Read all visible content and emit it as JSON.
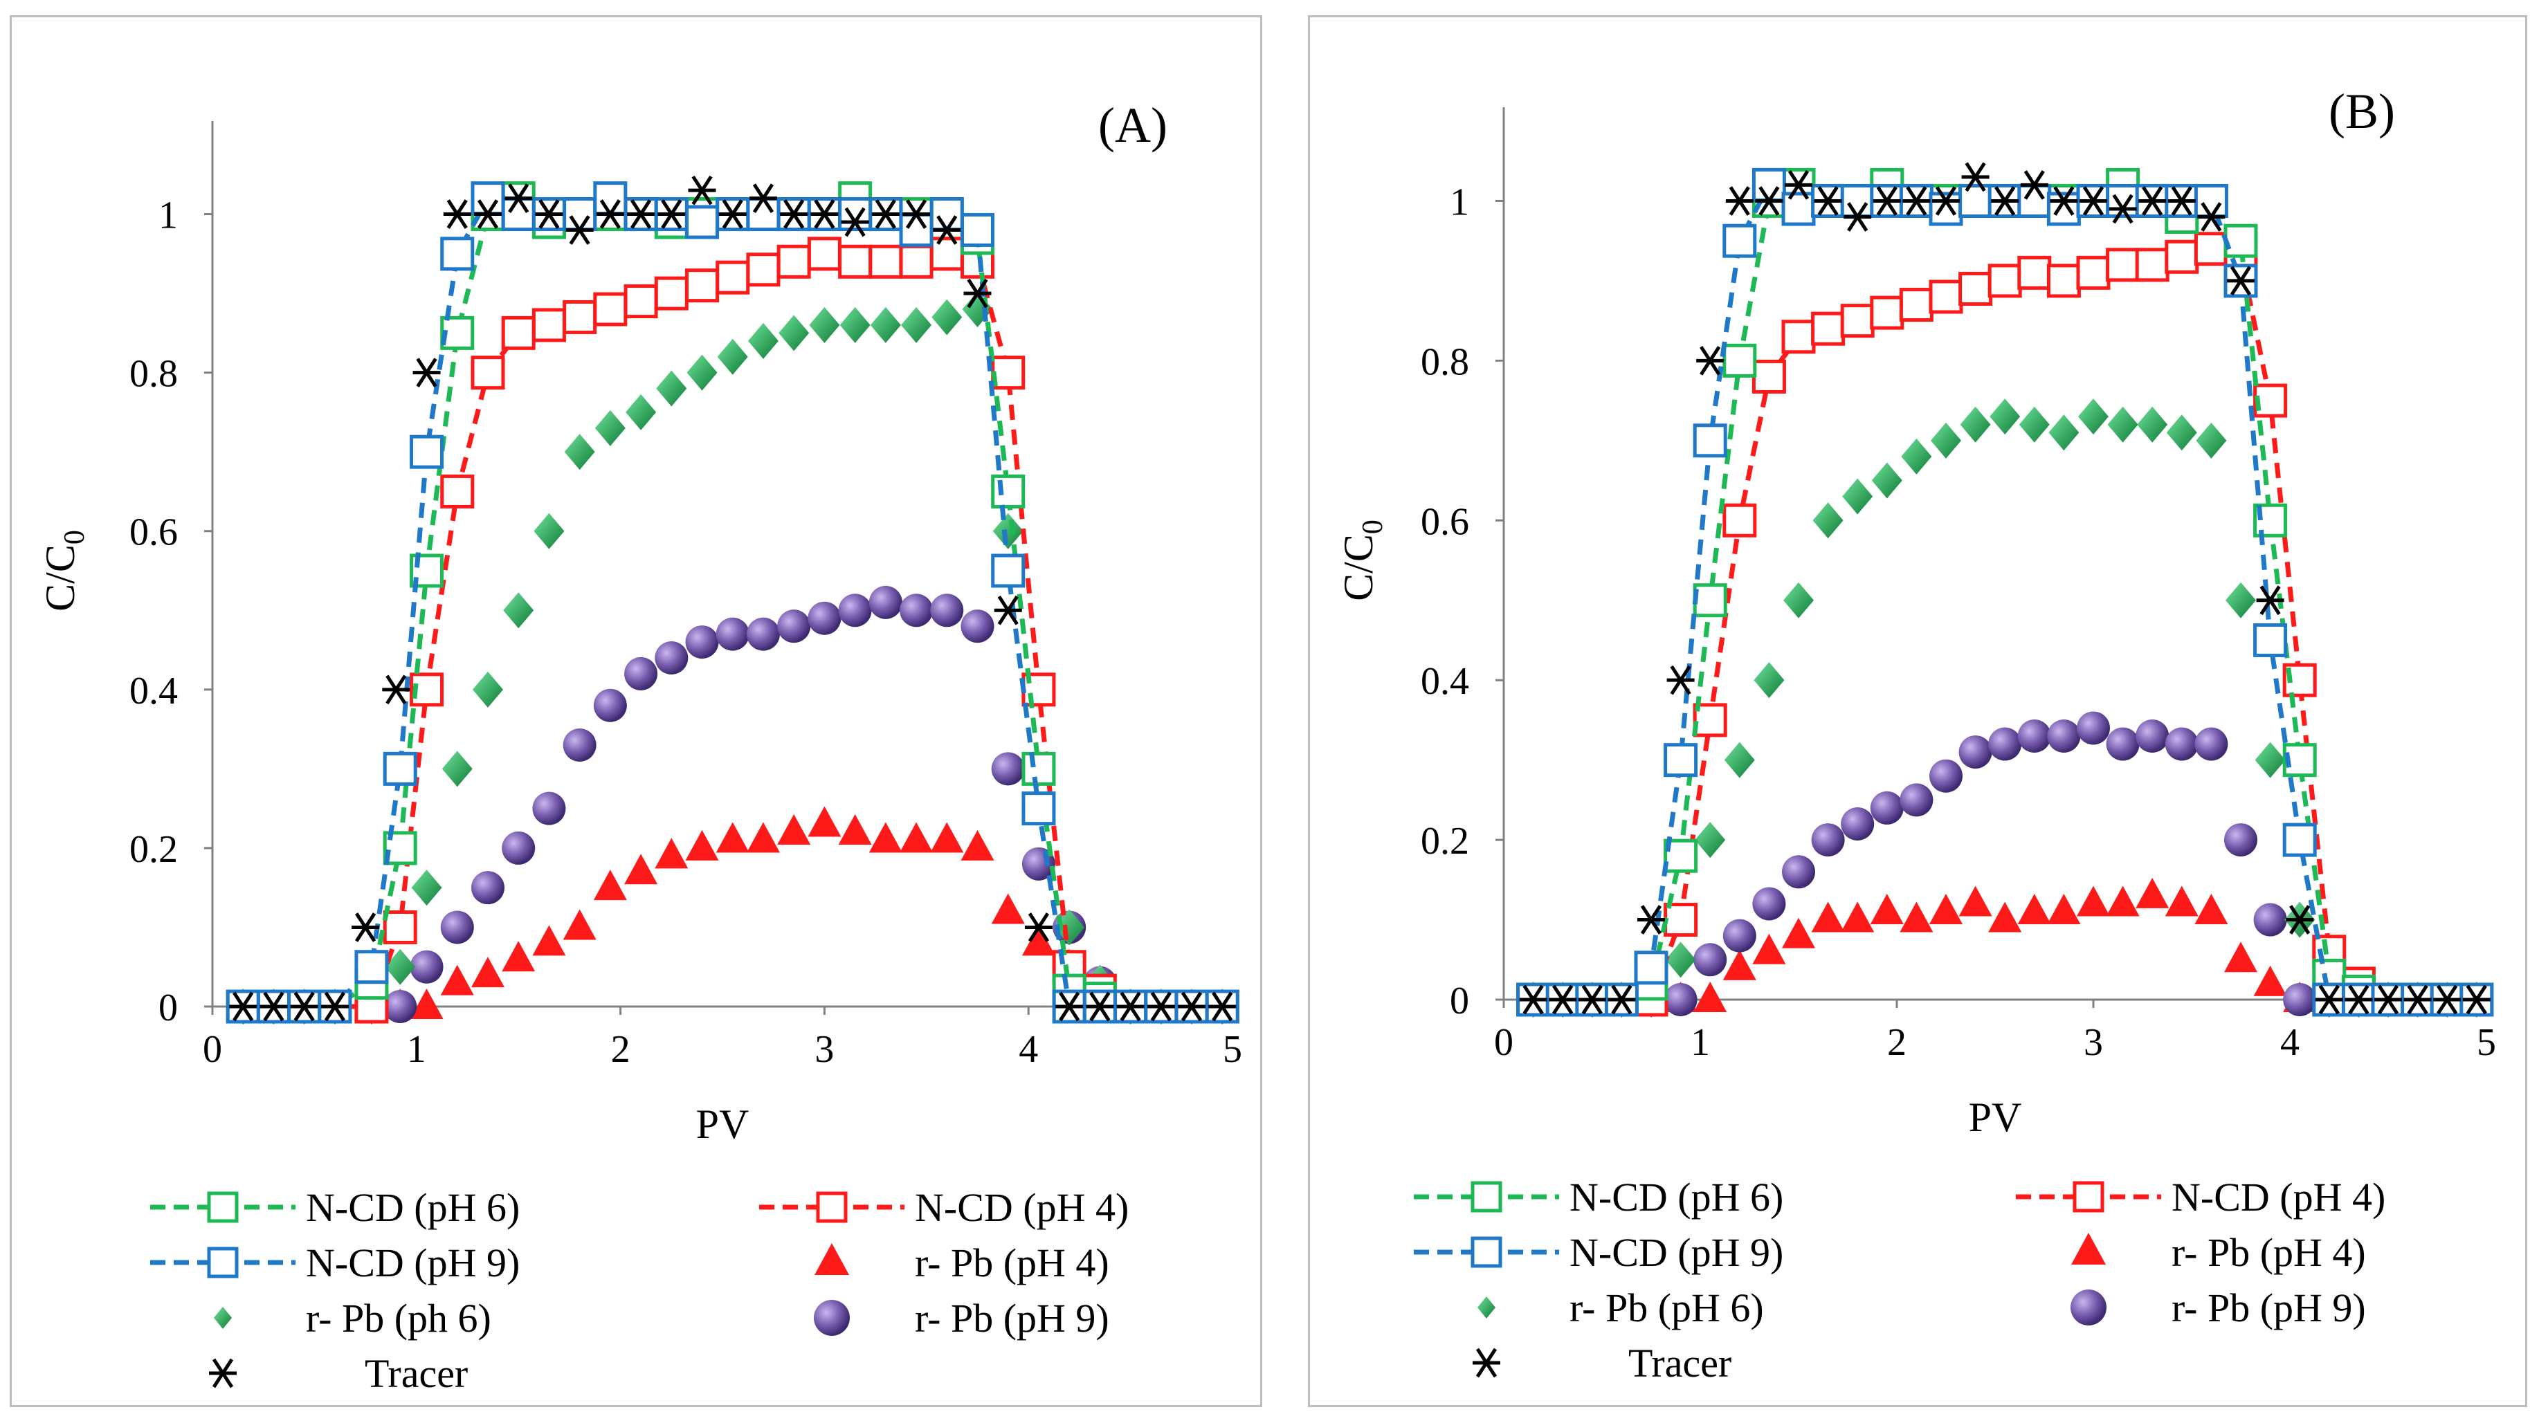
{
  "colors": {
    "green": "#1db954",
    "red": "#ff1a1a",
    "blue": "#1f78c8",
    "black": "#000000",
    "diamond": "#1a9e4a",
    "sphere": "#7a5fb0"
  },
  "legend": {
    "ncd_ph6": "N-CD (pH 6)",
    "ncd_ph4": "N-CD (pH 4)",
    "ncd_ph9": "N-CD (pH 9)",
    "rpb_ph4": "r- Pb (pH 4)",
    "rpb_ph6_a": "r- Pb (ph 6)",
    "rpb_ph6_b": "r- Pb (pH 6)",
    "rpb_ph9": "r- Pb (pH 9)",
    "tracer": "Tracer"
  },
  "chart_data": [
    {
      "type": "scatter",
      "panel_label": "(A)",
      "xlabel": "PV",
      "ylabel": "C/C0",
      "xlim": [
        0,
        5
      ],
      "ylim": [
        0,
        1.1
      ],
      "xticks": [
        "0",
        "1",
        "2",
        "3",
        "4",
        "5"
      ],
      "yticks": [
        "0",
        "0.2",
        "0.4",
        "0.6",
        "0.8",
        "1"
      ],
      "series": [
        {
          "name": "N-CD (pH 6)",
          "marker": "square-open",
          "line": "dashed",
          "color": "green",
          "x": [
            0.15,
            0.3,
            0.45,
            0.6,
            0.78,
            0.92,
            1.05,
            1.2,
            1.35,
            1.5,
            1.65,
            1.8,
            1.95,
            2.1,
            2.25,
            2.4,
            2.55,
            2.7,
            2.85,
            3.0,
            3.15,
            3.3,
            3.45,
            3.6,
            3.75,
            3.9,
            4.05,
            4.2,
            4.35,
            4.5,
            4.65,
            4.8,
            4.95
          ],
          "y": [
            0,
            0,
            0,
            0,
            0.03,
            0.2,
            0.55,
            0.85,
            1.0,
            1.02,
            0.99,
            1.0,
            1.0,
            1.0,
            0.99,
            1.0,
            1.0,
            1.0,
            1.0,
            1.0,
            1.02,
            1.0,
            1.0,
            1.0,
            0.97,
            0.65,
            0.3,
            0.02,
            0.01,
            0,
            0,
            0,
            0
          ]
        },
        {
          "name": "N-CD (pH 9)",
          "marker": "square-open",
          "line": "dashed",
          "color": "blue",
          "x": [
            0.15,
            0.3,
            0.45,
            0.6,
            0.78,
            0.92,
            1.05,
            1.2,
            1.35,
            1.5,
            1.65,
            1.8,
            1.95,
            2.1,
            2.25,
            2.4,
            2.55,
            2.7,
            2.85,
            3.0,
            3.15,
            3.3,
            3.45,
            3.6,
            3.75,
            3.9,
            4.05,
            4.2,
            4.35,
            4.5,
            4.65,
            4.8,
            4.95
          ],
          "y": [
            0,
            0,
            0,
            0,
            0.05,
            0.3,
            0.7,
            0.95,
            1.02,
            1.0,
            1.0,
            1.0,
            1.02,
            1.0,
            1.0,
            0.99,
            1.0,
            1.0,
            1.0,
            1.0,
            1.0,
            1.0,
            0.98,
            1.0,
            0.98,
            0.55,
            0.25,
            0.0,
            0.0,
            0,
            0,
            0,
            0
          ]
        },
        {
          "name": "N-CD (pH 4)",
          "marker": "square-open",
          "line": "dashed",
          "color": "red",
          "x": [
            0.15,
            0.3,
            0.45,
            0.6,
            0.78,
            0.92,
            1.05,
            1.2,
            1.35,
            1.5,
            1.65,
            1.8,
            1.95,
            2.1,
            2.25,
            2.4,
            2.55,
            2.7,
            2.85,
            3.0,
            3.15,
            3.3,
            3.45,
            3.6,
            3.75,
            3.9,
            4.05,
            4.2,
            4.35,
            4.5,
            4.65,
            4.8,
            4.95
          ],
          "y": [
            0,
            0,
            0,
            0,
            0.0,
            0.1,
            0.4,
            0.65,
            0.8,
            0.85,
            0.86,
            0.87,
            0.88,
            0.89,
            0.9,
            0.91,
            0.92,
            0.93,
            0.94,
            0.95,
            0.94,
            0.94,
            0.94,
            0.95,
            0.94,
            0.8,
            0.4,
            0.05,
            0.02,
            0,
            0,
            0,
            0
          ]
        },
        {
          "name": "r- Pb (pH 4)",
          "marker": "triangle",
          "color": "red",
          "x": [
            0.15,
            0.3,
            0.45,
            0.6,
            0.78,
            0.92,
            1.05,
            1.2,
            1.35,
            1.5,
            1.65,
            1.8,
            1.95,
            2.1,
            2.25,
            2.4,
            2.55,
            2.7,
            2.85,
            3.0,
            3.15,
            3.3,
            3.45,
            3.6,
            3.75,
            3.9,
            4.05,
            4.2,
            4.35,
            4.5,
            4.65,
            4.8,
            4.95
          ],
          "y": [
            0,
            0,
            0,
            0,
            0,
            0,
            0,
            0.03,
            0.04,
            0.06,
            0.08,
            0.1,
            0.15,
            0.17,
            0.19,
            0.2,
            0.21,
            0.21,
            0.22,
            0.23,
            0.22,
            0.21,
            0.21,
            0.21,
            0.2,
            0.12,
            0.08,
            0.04,
            0.01,
            0,
            0,
            0,
            0
          ]
        },
        {
          "name": "r- Pb (pH 6)",
          "marker": "diamond",
          "color": "diamond",
          "x": [
            0.15,
            0.3,
            0.45,
            0.6,
            0.78,
            0.92,
            1.05,
            1.2,
            1.35,
            1.5,
            1.65,
            1.8,
            1.95,
            2.1,
            2.25,
            2.4,
            2.55,
            2.7,
            2.85,
            3.0,
            3.15,
            3.3,
            3.45,
            3.6,
            3.75,
            3.9,
            4.05,
            4.2,
            4.35,
            4.5,
            4.65,
            4.8,
            4.95
          ],
          "y": [
            0,
            0,
            0,
            0,
            0,
            0.05,
            0.15,
            0.3,
            0.4,
            0.5,
            0.6,
            0.7,
            0.73,
            0.75,
            0.78,
            0.8,
            0.82,
            0.84,
            0.85,
            0.86,
            0.86,
            0.86,
            0.86,
            0.87,
            0.88,
            0.6,
            0.3,
            0.1,
            0.03,
            0,
            0,
            0,
            0
          ]
        },
        {
          "name": "r- Pb (pH 9)",
          "marker": "sphere",
          "color": "sphere",
          "x": [
            0.15,
            0.3,
            0.45,
            0.6,
            0.78,
            0.92,
            1.05,
            1.2,
            1.35,
            1.5,
            1.65,
            1.8,
            1.95,
            2.1,
            2.25,
            2.4,
            2.55,
            2.7,
            2.85,
            3.0,
            3.15,
            3.3,
            3.45,
            3.6,
            3.75,
            3.9,
            4.05,
            4.2,
            4.35,
            4.5,
            4.65,
            4.8,
            4.95
          ],
          "y": [
            0,
            0,
            0,
            0,
            0,
            0,
            0.05,
            0.1,
            0.15,
            0.2,
            0.25,
            0.33,
            0.38,
            0.42,
            0.44,
            0.46,
            0.47,
            0.47,
            0.48,
            0.49,
            0.5,
            0.51,
            0.5,
            0.5,
            0.48,
            0.3,
            0.18,
            0.1,
            0.03,
            0,
            0,
            0,
            0
          ]
        },
        {
          "name": "Tracer",
          "marker": "asterisk",
          "color": "black",
          "x": [
            0.15,
            0.3,
            0.45,
            0.6,
            0.75,
            0.9,
            1.05,
            1.2,
            1.35,
            1.5,
            1.65,
            1.8,
            1.95,
            2.1,
            2.25,
            2.4,
            2.55,
            2.7,
            2.85,
            3.0,
            3.15,
            3.3,
            3.45,
            3.6,
            3.75,
            3.9,
            4.05,
            4.2,
            4.35,
            4.5,
            4.65,
            4.8,
            4.95
          ],
          "y": [
            0,
            0,
            0,
            0,
            0.1,
            0.4,
            0.8,
            1.0,
            1.0,
            1.02,
            1.0,
            0.98,
            1.0,
            1.0,
            1.0,
            1.03,
            1.0,
            1.02,
            1.0,
            1.0,
            0.99,
            1.0,
            1.0,
            0.98,
            0.9,
            0.5,
            0.1,
            0.0,
            0.0,
            0,
            0,
            0,
            0
          ]
        }
      ]
    },
    {
      "type": "scatter",
      "panel_label": "(B)",
      "xlabel": "PV",
      "ylabel": "C/C0",
      "xlim": [
        0,
        5
      ],
      "ylim": [
        0,
        1.1
      ],
      "xticks": [
        "0",
        "1",
        "2",
        "3",
        "4",
        "5"
      ],
      "yticks": [
        "0",
        "0.2",
        "0.4",
        "0.6",
        "0.8",
        "1"
      ],
      "series": [
        {
          "name": "N-CD (pH 6)",
          "marker": "square-open",
          "line": "dashed",
          "color": "green",
          "x": [
            0.15,
            0.3,
            0.45,
            0.6,
            0.75,
            0.9,
            1.05,
            1.2,
            1.35,
            1.5,
            1.65,
            1.8,
            1.95,
            2.1,
            2.25,
            2.4,
            2.55,
            2.7,
            2.85,
            3.0,
            3.15,
            3.3,
            3.45,
            3.6,
            3.75,
            3.9,
            4.05,
            4.2,
            4.35,
            4.5,
            4.65,
            4.8,
            4.95
          ],
          "y": [
            0,
            0,
            0,
            0,
            0.02,
            0.18,
            0.5,
            0.8,
            1.0,
            1.02,
            1.0,
            1.0,
            1.02,
            1.0,
            1.0,
            1.0,
            1.0,
            1.0,
            1.0,
            1.0,
            1.02,
            1.0,
            0.98,
            1.0,
            0.95,
            0.6,
            0.3,
            0.03,
            0.01,
            0,
            0,
            0,
            0
          ]
        },
        {
          "name": "N-CD (pH 9)",
          "marker": "square-open",
          "line": "dashed",
          "color": "blue",
          "x": [
            0.15,
            0.3,
            0.45,
            0.6,
            0.75,
            0.9,
            1.05,
            1.2,
            1.35,
            1.5,
            1.65,
            1.8,
            1.95,
            2.1,
            2.25,
            2.4,
            2.55,
            2.7,
            2.85,
            3.0,
            3.15,
            3.3,
            3.45,
            3.6,
            3.75,
            3.9,
            4.05,
            4.2,
            4.35,
            4.5,
            4.65,
            4.8,
            4.95
          ],
          "y": [
            0,
            0,
            0,
            0,
            0.04,
            0.3,
            0.7,
            0.95,
            1.02,
            0.99,
            1.0,
            1.0,
            1.0,
            1.0,
            0.99,
            1.0,
            1.0,
            1.0,
            0.99,
            1.0,
            1.0,
            1.0,
            1.0,
            1.0,
            0.9,
            0.45,
            0.2,
            0.0,
            0.0,
            0,
            0,
            0,
            0
          ]
        },
        {
          "name": "N-CD (pH 4)",
          "marker": "square-open",
          "line": "dashed",
          "color": "red",
          "x": [
            0.15,
            0.3,
            0.45,
            0.6,
            0.75,
            0.9,
            1.05,
            1.2,
            1.35,
            1.5,
            1.65,
            1.8,
            1.95,
            2.1,
            2.25,
            2.4,
            2.55,
            2.7,
            2.85,
            3.0,
            3.15,
            3.3,
            3.45,
            3.6,
            3.75,
            3.9,
            4.05,
            4.2,
            4.35,
            4.5,
            4.65,
            4.8,
            4.95
          ],
          "y": [
            0,
            0,
            0,
            0,
            0.0,
            0.1,
            0.35,
            0.6,
            0.78,
            0.83,
            0.84,
            0.85,
            0.86,
            0.87,
            0.88,
            0.89,
            0.9,
            0.91,
            0.9,
            0.91,
            0.92,
            0.92,
            0.93,
            0.94,
            0.93,
            0.75,
            0.4,
            0.06,
            0.02,
            0,
            0,
            0,
            0
          ]
        },
        {
          "name": "r- Pb (pH 4)",
          "marker": "triangle",
          "color": "red",
          "x": [
            0.15,
            0.3,
            0.45,
            0.6,
            0.75,
            0.9,
            1.05,
            1.2,
            1.35,
            1.5,
            1.65,
            1.8,
            1.95,
            2.1,
            2.25,
            2.4,
            2.55,
            2.7,
            2.85,
            3.0,
            3.15,
            3.3,
            3.45,
            3.6,
            3.75,
            3.9,
            4.05,
            4.2,
            4.35,
            4.5,
            4.65,
            4.8,
            4.95
          ],
          "y": [
            0,
            0,
            0,
            0,
            0,
            0,
            0,
            0.04,
            0.06,
            0.08,
            0.1,
            0.1,
            0.11,
            0.1,
            0.11,
            0.12,
            0.1,
            0.11,
            0.11,
            0.12,
            0.12,
            0.13,
            0.12,
            0.11,
            0.05,
            0.02,
            0.0,
            0,
            0,
            0,
            0,
            0,
            0
          ]
        },
        {
          "name": "r- Pb (pH 6)",
          "marker": "diamond",
          "color": "diamond",
          "x": [
            0.15,
            0.3,
            0.45,
            0.6,
            0.75,
            0.9,
            1.05,
            1.2,
            1.35,
            1.5,
            1.65,
            1.8,
            1.95,
            2.1,
            2.25,
            2.4,
            2.55,
            2.7,
            2.85,
            3.0,
            3.15,
            3.3,
            3.45,
            3.6,
            3.75,
            3.9,
            4.05,
            4.2,
            4.35,
            4.5,
            4.65,
            4.8,
            4.95
          ],
          "y": [
            0,
            0,
            0,
            0,
            0,
            0.05,
            0.2,
            0.3,
            0.4,
            0.5,
            0.6,
            0.63,
            0.65,
            0.68,
            0.7,
            0.72,
            0.73,
            0.72,
            0.71,
            0.73,
            0.72,
            0.72,
            0.71,
            0.7,
            0.5,
            0.3,
            0.1,
            0.0,
            0,
            0,
            0,
            0,
            0
          ]
        },
        {
          "name": "r- Pb (pH 9)",
          "marker": "sphere",
          "color": "sphere",
          "x": [
            0.15,
            0.3,
            0.45,
            0.6,
            0.75,
            0.9,
            1.05,
            1.2,
            1.35,
            1.5,
            1.65,
            1.8,
            1.95,
            2.1,
            2.25,
            2.4,
            2.55,
            2.7,
            2.85,
            3.0,
            3.15,
            3.3,
            3.45,
            3.6,
            3.75,
            3.9,
            4.05,
            4.2,
            4.35,
            4.5,
            4.65,
            4.8,
            4.95
          ],
          "y": [
            0,
            0,
            0,
            0,
            0,
            0,
            0.05,
            0.08,
            0.12,
            0.16,
            0.2,
            0.22,
            0.24,
            0.25,
            0.28,
            0.31,
            0.32,
            0.33,
            0.33,
            0.34,
            0.32,
            0.33,
            0.32,
            0.32,
            0.2,
            0.1,
            0.0,
            0,
            0,
            0,
            0,
            0,
            0
          ]
        },
        {
          "name": "Tracer",
          "marker": "asterisk",
          "color": "black",
          "x": [
            0.15,
            0.3,
            0.45,
            0.6,
            0.75,
            0.9,
            1.05,
            1.2,
            1.35,
            1.5,
            1.65,
            1.8,
            1.95,
            2.1,
            2.25,
            2.4,
            2.55,
            2.7,
            2.85,
            3.0,
            3.15,
            3.3,
            3.45,
            3.6,
            3.75,
            3.9,
            4.05,
            4.2,
            4.35,
            4.5,
            4.65,
            4.8,
            4.95
          ],
          "y": [
            0,
            0,
            0,
            0,
            0.1,
            0.4,
            0.8,
            1.0,
            1.0,
            1.02,
            1.0,
            0.98,
            1.0,
            1.0,
            1.0,
            1.03,
            1.0,
            1.02,
            1.0,
            1.0,
            0.99,
            1.0,
            1.0,
            0.98,
            0.9,
            0.5,
            0.1,
            0.0,
            0.0,
            0,
            0,
            0,
            0
          ]
        }
      ]
    }
  ]
}
